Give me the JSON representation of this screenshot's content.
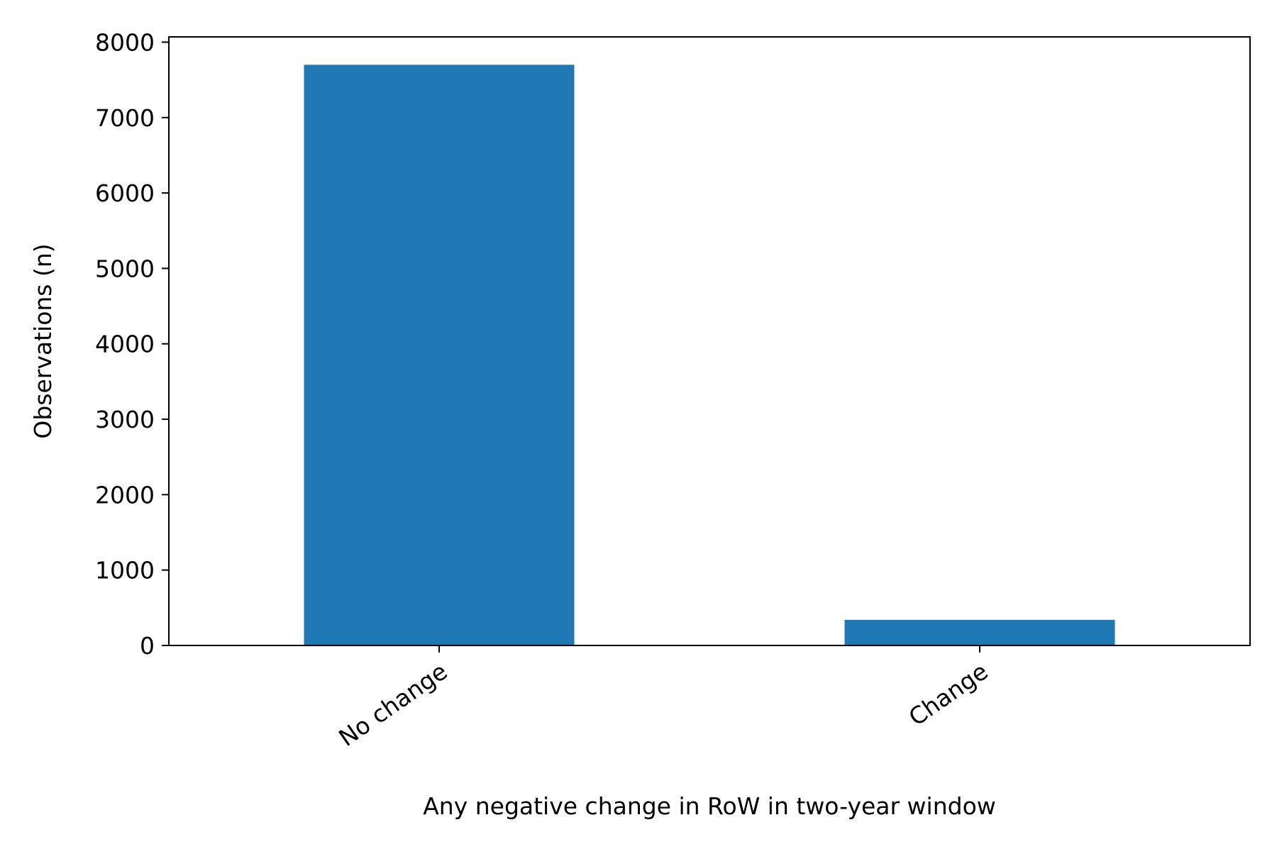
{
  "chart_data": {
    "type": "bar",
    "categories": [
      "No change",
      "Change"
    ],
    "values": [
      7700,
      340
    ],
    "title": "",
    "xlabel": "Any negative change in RoW in two-year window",
    "ylabel": "Observations (n)",
    "ylim": [
      0,
      8070
    ],
    "yticks": [
      0,
      1000,
      2000,
      3000,
      4000,
      5000,
      6000,
      7000,
      8000
    ],
    "grid": false,
    "legend": "none",
    "bar_color": "#1f77b4"
  }
}
